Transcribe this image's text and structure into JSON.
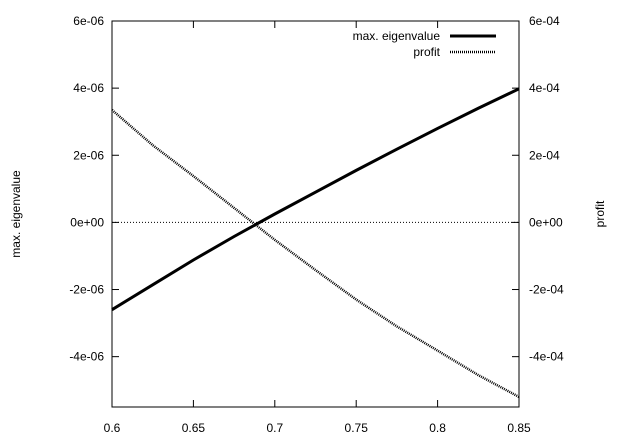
{
  "chart_data": {
    "type": "line",
    "title": "",
    "xlabel": "",
    "ylabel_left": "max. eigenvalue",
    "ylabel_right": "profit",
    "xlim": [
      0.6,
      0.85
    ],
    "ylim_left": [
      -5.5e-06,
      6e-06
    ],
    "ylim_right": [
      -0.00055,
      0.0006
    ],
    "x_ticks": [
      {
        "v": 0.6,
        "label": "0.6"
      },
      {
        "v": 0.65,
        "label": "0.65"
      },
      {
        "v": 0.7,
        "label": "0.7"
      },
      {
        "v": 0.75,
        "label": "0.75"
      },
      {
        "v": 0.8,
        "label": "0.8"
      },
      {
        "v": 0.85,
        "label": "0.85"
      }
    ],
    "y_ticks_left": [
      {
        "v": 6e-06,
        "label": "6e-06"
      },
      {
        "v": 4e-06,
        "label": "4e-06"
      },
      {
        "v": 2e-06,
        "label": "2e-06"
      },
      {
        "v": 0,
        "label": "0e+00"
      },
      {
        "v": -2e-06,
        "label": "-2e-06"
      },
      {
        "v": -4e-06,
        "label": "-4e-06"
      }
    ],
    "y_ticks_right": [
      {
        "v": 0.0006,
        "label": "6e-04"
      },
      {
        "v": 0.0004,
        "label": "4e-04"
      },
      {
        "v": 0.0002,
        "label": "2e-04"
      },
      {
        "v": 0,
        "label": "0e+00"
      },
      {
        "v": -0.0002,
        "label": "-2e-04"
      },
      {
        "v": -0.0004,
        "label": "-4e-04"
      }
    ],
    "grid": false,
    "zero_line": true,
    "legend_position": "top-right",
    "series": [
      {
        "name": "max. eigenvalue",
        "axis": "left",
        "style": "solid",
        "x": [
          0.6,
          0.625,
          0.65,
          0.675,
          0.7,
          0.725,
          0.75,
          0.775,
          0.8,
          0.825,
          0.85
        ],
        "values": [
          -2.6e-06,
          -1.86e-06,
          -1.12e-06,
          -4.2e-07,
          2.5e-07,
          9e-07,
          1.55e-06,
          2.18e-06,
          2.8e-06,
          3.4e-06,
          3.98e-06
        ]
      },
      {
        "name": "profit",
        "axis": "right",
        "style": "dotted",
        "x": [
          0.6,
          0.625,
          0.65,
          0.675,
          0.7,
          0.725,
          0.75,
          0.775,
          0.8,
          0.825,
          0.85
        ],
        "values": [
          0.000335,
          0.00023,
          0.000138,
          4.3e-05,
          -5.2e-05,
          -0.000142,
          -0.00023,
          -0.00031,
          -0.000382,
          -0.000455,
          -0.00052
        ]
      }
    ]
  }
}
